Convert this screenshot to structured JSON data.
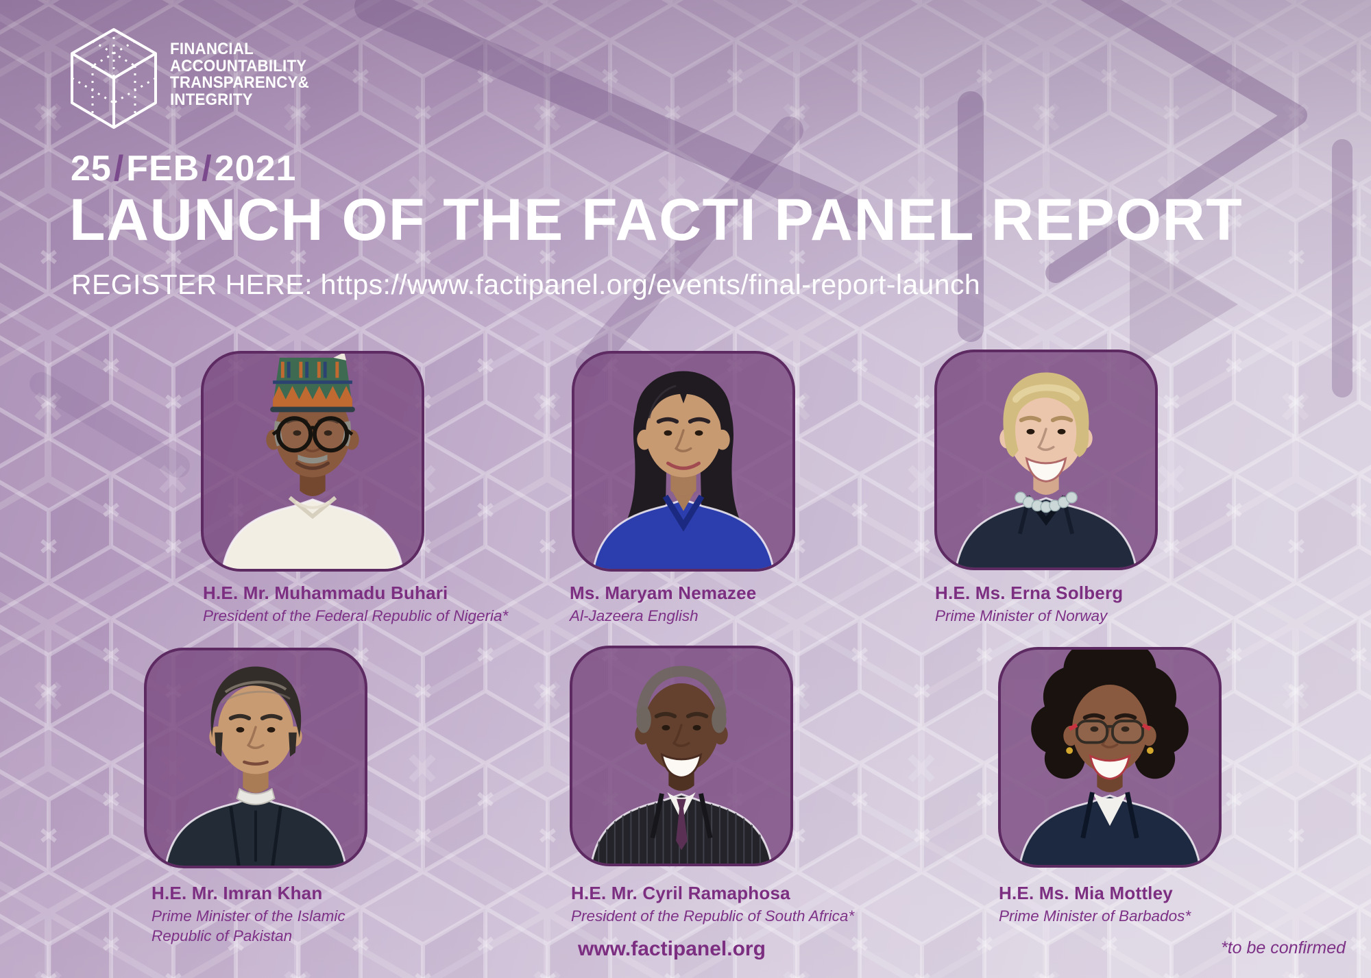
{
  "poster": {
    "logo": {
      "icon": "facti-cube-logo",
      "lines": [
        "FINANCIAL",
        "ACCOUNTABILITY",
        "TRANSPARENCY&",
        "INTEGRITY"
      ]
    },
    "date": {
      "day": "25",
      "month": "FEB",
      "year": "2021",
      "separator": "/"
    },
    "title": "LAUNCH OF THE FACTI PANEL REPORT",
    "register_line": "REGISTER HERE: https://www.factipanel.org/events/final-report-launch",
    "website": "www.factipanel.org",
    "footnote": "*to be confirmed",
    "colors": {
      "background_top": "#a68bb1",
      "background_bottom": "#ded6e4",
      "card_fill": "#8a5b91",
      "card_border": "#5d2a62",
      "headline_text": "#ffffff",
      "speaker_text": "#7c2e81",
      "date_slash": "#7b4a8c"
    }
  },
  "speakers": [
    {
      "name": "H.E. Mr. Muhammadu Buhari",
      "role": "President of the Federal Republic of Nigeria*",
      "portrait": {
        "icon": "buhari-portrait",
        "skin": "#8a5a3e",
        "skin_shadow": "#73482f",
        "brow": "#4a3426",
        "hair": "patterned-kufi-hat",
        "hair_color": "#8e8d86",
        "hat_colors": [
          "#c06a31",
          "#2c4371",
          "#3f6a52"
        ],
        "outfit": "white-robe",
        "outfit_color": "#f2eee4",
        "glasses": "round-dark",
        "mustache": true,
        "temple_gray": true,
        "smile": "soft",
        "lips": "#5d3a2c"
      }
    },
    {
      "name": "Ms. Maryam Nemazee",
      "role": "Al-Jazeera English",
      "portrait": {
        "icon": "nemazee-portrait",
        "skin": "#c79a72",
        "skin_shadow": "#a87c58",
        "brow": "#2a2126",
        "hair": "long-wavy",
        "hair_color": "#201b20",
        "outfit": "blue-v-neck",
        "outfit_color": "#2c3ead",
        "glasses": null,
        "mustache": false,
        "smile": "soft",
        "lips": "#a14a50"
      }
    },
    {
      "name": "H.E. Ms. Erna Solberg",
      "role": "Prime Minister of Norway",
      "portrait": {
        "icon": "solberg-portrait",
        "skin": "#ecc6ac",
        "skin_shadow": "#d3a88c",
        "brow": "#b08d5e",
        "hair": "short-bob",
        "hair_color": "#d3bc80",
        "hair_highlight": "#e8daa8",
        "outfit": "dark-blazer-necklace",
        "outfit_color": "#222b3d",
        "necklace_bead": "#ccd8d8",
        "necklace_edge": "#9fb3b5",
        "glasses": null,
        "mustache": false,
        "smile": "big",
        "lips": "#b06a6a"
      }
    },
    {
      "name": "H.E. Mr. Imran Khan",
      "role": "Prime Minister of the Islamic\nRepublic of Pakistan",
      "portrait": {
        "icon": "imran-khan-portrait",
        "skin": "#c99b73",
        "skin_shadow": "#a97c55",
        "brow": "#332c26",
        "hair": "swept-back",
        "hair_color": "#332d29",
        "hair_highlight": "#8a7f74",
        "outfit": "dark-kurta-band-collar",
        "outfit_color": "#232b37",
        "glasses": null,
        "mustache": false,
        "smile": "neutral",
        "lips": "#7a4a3a"
      }
    },
    {
      "name": "H.E. Mr. Cyril Ramaphosa",
      "role": "President of the Republic of South Africa*",
      "portrait": {
        "icon": "ramaphosa-portrait",
        "skin": "#63412e",
        "skin_shadow": "#4f3222",
        "brow": "#3a281c",
        "hair": "balding-fringe",
        "hair_color": "#6f675f",
        "outfit": "pinstripe-suit-tie",
        "outfit_color": "#232329",
        "tie_color": "#5a3154",
        "shirt_color": "#f4f2ee",
        "glasses": null,
        "mustache": false,
        "smile": "big",
        "lips": "#4a2c20"
      }
    },
    {
      "name": "H.E. Ms. Mia Mottley",
      "role": "Prime Minister of Barbados*",
      "portrait": {
        "icon": "mottley-portrait",
        "skin": "#8a5a40",
        "skin_shadow": "#70452f",
        "brow": "#241812",
        "hair": "afro",
        "hair_color": "#19120e",
        "outfit": "dark-blazer-shirt",
        "outfit_color": "#1c2940",
        "shirt_color": "#f2f0ec",
        "glasses": "red-temple",
        "mustache": false,
        "earrings": "#d4a82e",
        "smile": "big",
        "lips": "#b03a42"
      }
    }
  ]
}
